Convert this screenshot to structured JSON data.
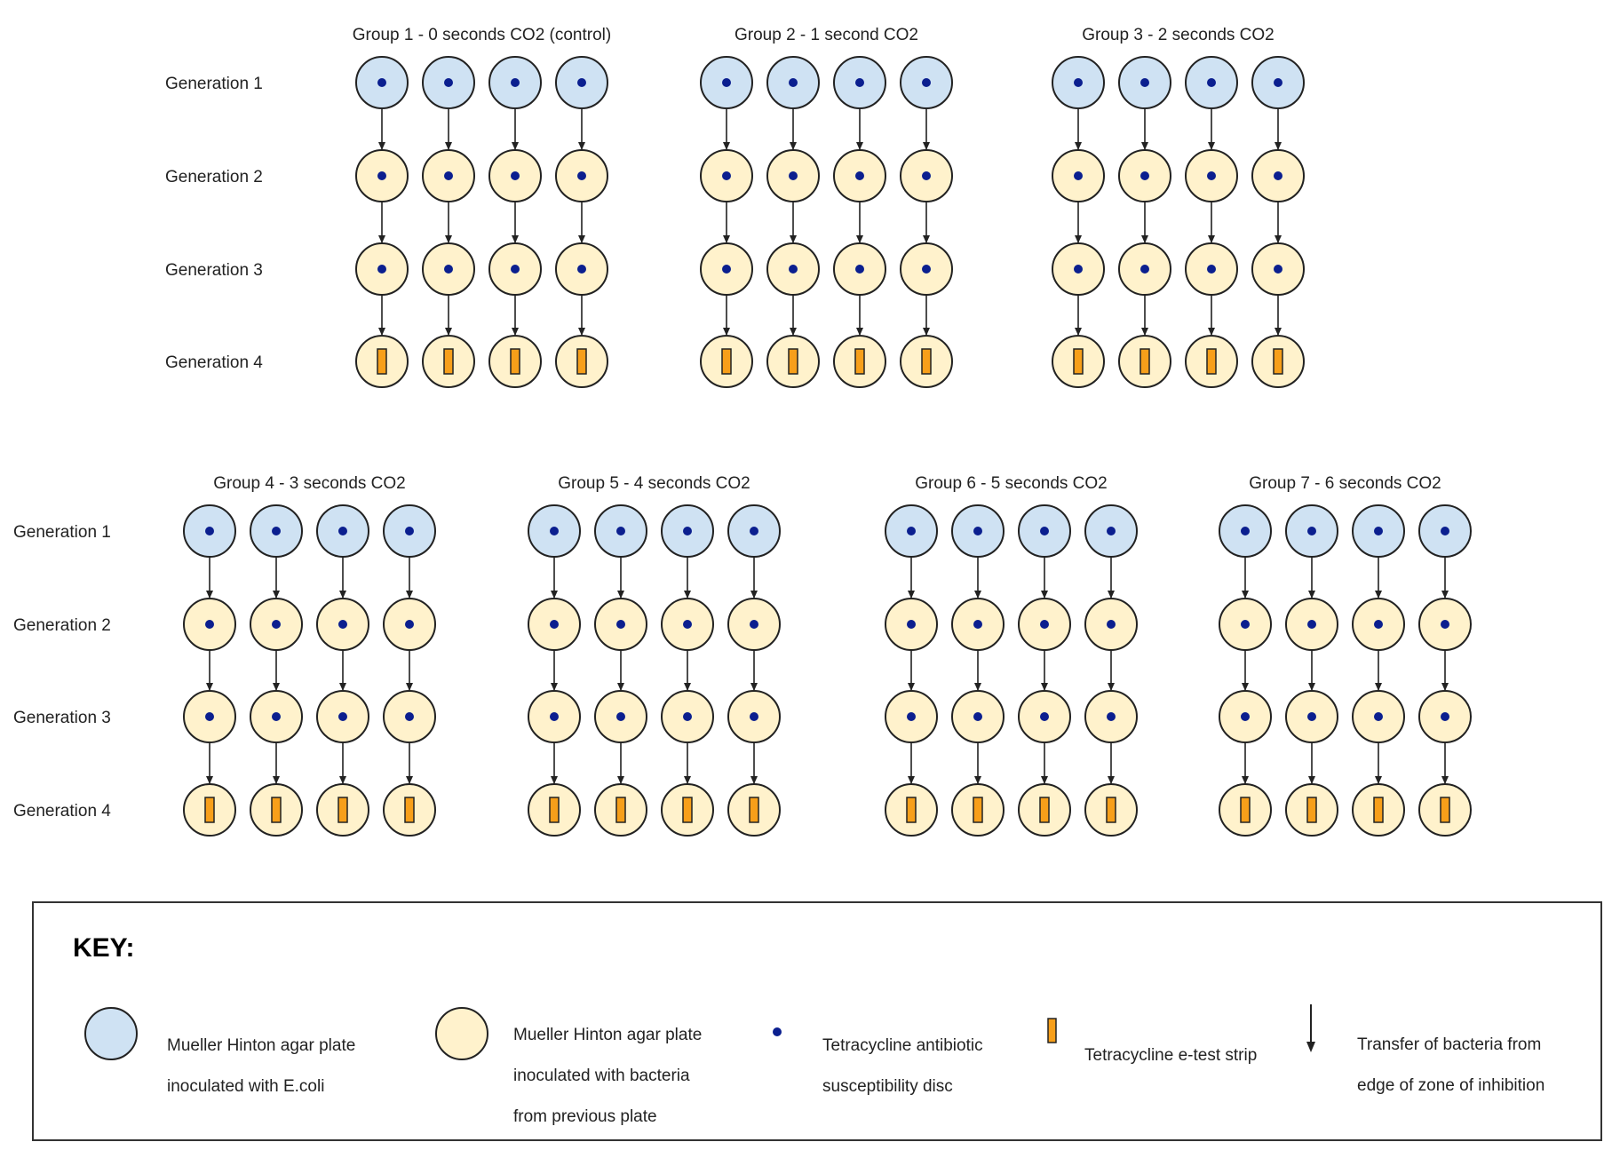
{
  "generation_labels": [
    "Generation 1",
    "Generation 2",
    "Generation 3",
    "Generation 4"
  ],
  "groups": [
    {
      "title": "Group 1 - 0 seconds CO2 (control)",
      "plates_per_generation": 4
    },
    {
      "title": "Group 2 - 1 second CO2",
      "plates_per_generation": 4
    },
    {
      "title": "Group 3 - 2 seconds CO2",
      "plates_per_generation": 4
    },
    {
      "title": "Group 4 - 3 seconds CO2",
      "plates_per_generation": 4
    },
    {
      "title": "Group 5 - 4 seconds CO2",
      "plates_per_generation": 4
    },
    {
      "title": "Group 6 - 5 seconds CO2",
      "plates_per_generation": 4
    },
    {
      "title": "Group 7 - 6 seconds CO2",
      "plates_per_generation": 4
    }
  ],
  "generation_plate_types": [
    "ecoli-plate",
    "bacteria-plate",
    "bacteria-plate",
    "bacteria-plate"
  ],
  "generation_markers": [
    "disc",
    "disc",
    "disc",
    "strip"
  ],
  "colors": {
    "ecoli_plate": "#cfe2f3",
    "bacteria_plate": "#fff2cc",
    "plate_border": "#222222",
    "disc": "#0b1f8f",
    "strip": "#f79f1a"
  },
  "key": {
    "title": "KEY:",
    "items": [
      {
        "icon": "ecoli-plate-icon",
        "lines": [
          "Mueller Hinton agar plate",
          "inoculated with E.coli"
        ]
      },
      {
        "icon": "bacteria-plate-icon",
        "lines": [
          "Mueller Hinton agar plate",
          "inoculated with bacteria",
          "from previous plate"
        ]
      },
      {
        "icon": "disc-icon",
        "lines": [
          "Tetracycline antibiotic",
          "susceptibility disc"
        ]
      },
      {
        "icon": "strip-icon",
        "lines": [
          "Tetracycline e-test strip"
        ]
      },
      {
        "icon": "arrow-icon",
        "lines": [
          "Transfer of bacteria from",
          "edge of zone of inhibition"
        ]
      }
    ]
  }
}
